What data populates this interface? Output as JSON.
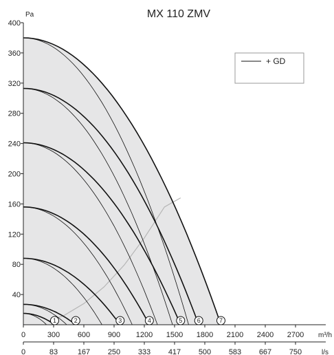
{
  "chart_data": {
    "type": "line",
    "title": "MX 110 ZMV",
    "ylabel": "Pa",
    "xlabel_primary": "m³/h",
    "xlabel_secondary": "l/s",
    "xlim": [
      0,
      3000
    ],
    "ylim": [
      0,
      400
    ],
    "x_ticks": [
      "0",
      "300",
      "600",
      "900",
      "1200",
      "1500",
      "1800",
      "2100",
      "2400",
      "2700"
    ],
    "x_tick_values": [
      0,
      300,
      600,
      900,
      1200,
      1500,
      1800,
      2100,
      2400,
      2700
    ],
    "x2_ticks": [
      "0",
      "83",
      "167",
      "250",
      "333",
      "417",
      "500",
      "583",
      "667",
      "750"
    ],
    "y_ticks": [
      "40",
      "80",
      "120",
      "160",
      "200",
      "240",
      "280",
      "320",
      "360",
      "400"
    ],
    "y_tick_values": [
      40,
      80,
      120,
      160,
      200,
      240,
      280,
      320,
      360,
      400
    ],
    "legend": {
      "label": "+ GD",
      "placement": "top-right"
    },
    "grid": false,
    "speed_curves": [
      {
        "label": "1",
        "pressure_at_zero": 15,
        "x_end": 310
      },
      {
        "label": "2",
        "pressure_at_zero": 27,
        "x_end": 520
      },
      {
        "label": "3",
        "pressure_at_zero": 88,
        "x_end": 960
      },
      {
        "label": "4",
        "pressure_at_zero": 156,
        "x_end": 1250
      },
      {
        "label": "5",
        "pressure_at_zero": 241,
        "x_end": 1560
      },
      {
        "label": "6",
        "pressure_at_zero": 313,
        "x_end": 1740
      },
      {
        "label": "7",
        "pressure_at_zero": 380,
        "x_end": 1960
      }
    ],
    "gd_curves": [
      {
        "pressure_at_zero": 15,
        "x_end": 230
      },
      {
        "pressure_at_zero": 27,
        "x_end": 430
      },
      {
        "pressure_at_zero": 88,
        "x_end": 780
      },
      {
        "pressure_at_zero": 156,
        "x_end": 1080
      },
      {
        "pressure_at_zero": 241,
        "x_end": 1330
      },
      {
        "pressure_at_zero": 313,
        "x_end": 1480
      },
      {
        "pressure_at_zero": 380,
        "x_end": 1640
      }
    ],
    "system_curve": [
      [
        250,
        5
      ],
      [
        400,
        12
      ],
      [
        600,
        28
      ],
      [
        800,
        50
      ],
      [
        1000,
        79
      ],
      [
        1200,
        115
      ],
      [
        1400,
        156
      ],
      [
        1560,
        168
      ]
    ],
    "colors": {
      "curve": "#111111",
      "fill": "#e6e6e7",
      "system_curve": "#b5b5b5",
      "axis": "#222222"
    }
  }
}
